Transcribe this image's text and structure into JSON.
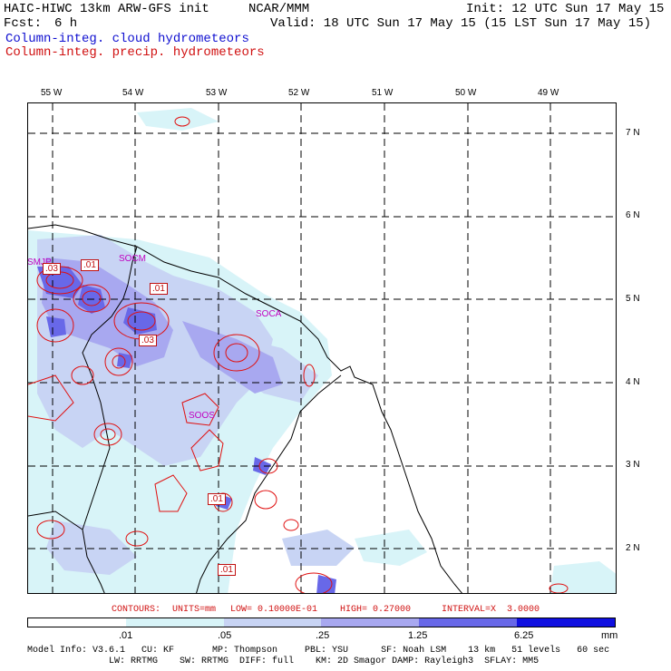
{
  "header": {
    "model": "HAIC-HIWC 13km ARW-GFS init",
    "org": "NCAR/MMM",
    "init": "Init: 12 UTC Sun 17 May 15",
    "fcst_label": "Fcst:",
    "fcst_value": "6 h",
    "valid": "Valid: 18 UTC Sun 17 May 15 (15 LST Sun 17 May 15)",
    "field1": "Column-integ. cloud hydrometeors",
    "field2": "Column-integ. precip. hydrometeors"
  },
  "longitudes": [
    "55 W",
    "54 W",
    "53 W",
    "52 W",
    "51 W",
    "50 W",
    "49 W"
  ],
  "latitudes": [
    "7 N",
    "6 N",
    "5 N",
    "4 N",
    "3 N",
    "2 N"
  ],
  "sites": {
    "smjp": "SMJP",
    "socm": "SOCM",
    "soca": "SOCA",
    "soos": "SOOS"
  },
  "contour_labels": [
    ".03",
    ".01",
    ".01",
    ".03",
    ".01",
    ".01"
  ],
  "contour_info": {
    "contours": "CONTOURS:",
    "units": "UNITS=mm",
    "low": "LOW= 0.10000E-01",
    "high": "HIGH= 0.27000",
    "interval": "INTERVAL=X  3.0000"
  },
  "colorbar": {
    "labels": [
      ".01",
      ".05",
      ".25",
      "1.25",
      "6.25",
      "mm"
    ],
    "colors": [
      "#ffffff",
      "#d8f4f8",
      "#c8d4f4",
      "#a8a8f0",
      "#6868e8",
      "#3030e0",
      "#1010e0"
    ]
  },
  "footer": {
    "line1": "Model Info: V3.6.1   CU: KF       MP: Thompson     PBL: YSU      SF: Noah LSM    13 km   51 levels   60 sec",
    "line2": "               LW: RRTMG    SW: RRTMG  DIFF: full    KM: 2D Smagor DAMP: Rayleigh3  SFLAY: MM5"
  }
}
